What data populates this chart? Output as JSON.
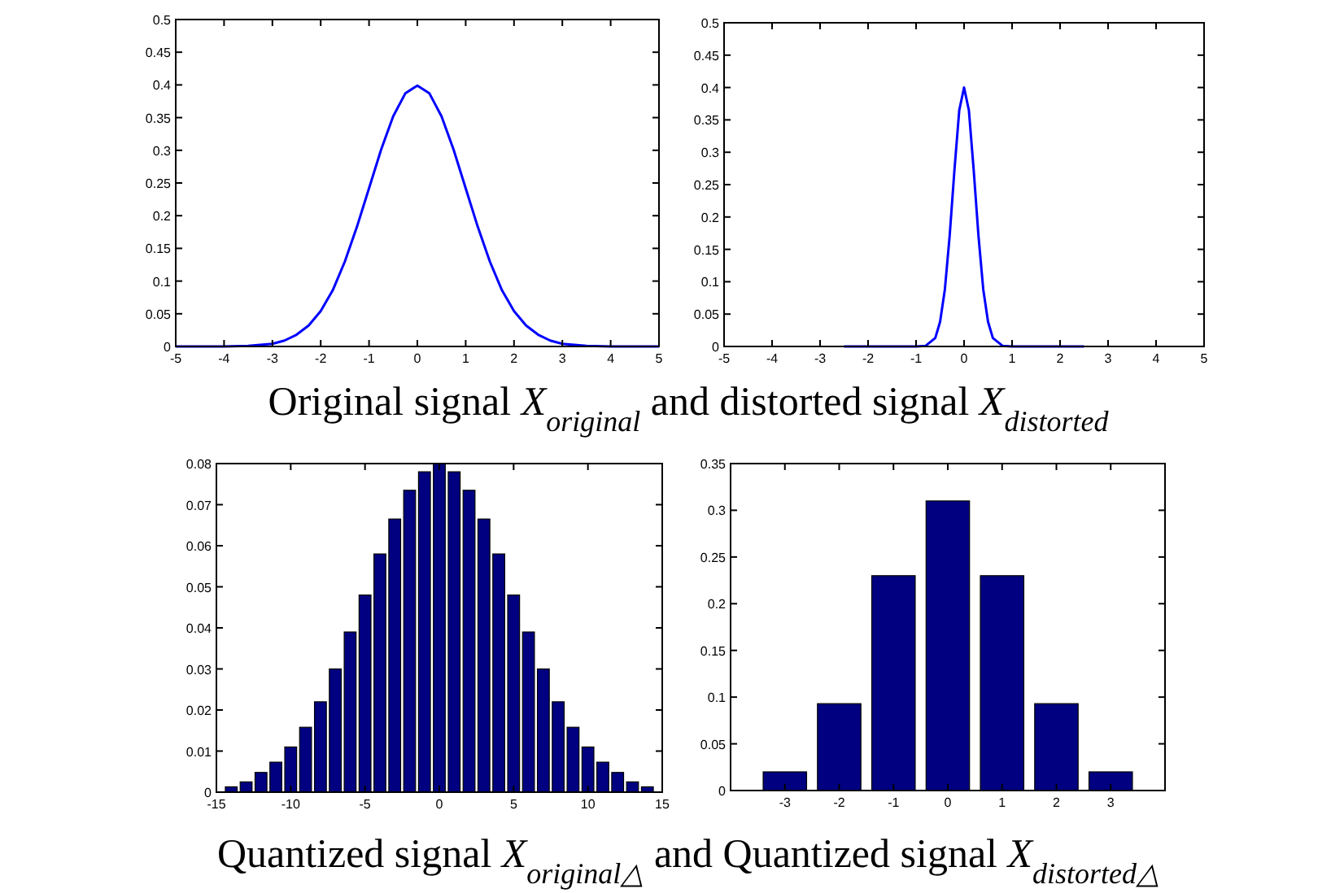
{
  "chart_data": [
    {
      "type": "line",
      "color": "#0000ff",
      "x": [
        -5,
        -4,
        -3.5,
        -3,
        -2.75,
        -2.5,
        -2.25,
        -2,
        -1.75,
        -1.5,
        -1.25,
        -1,
        -0.75,
        -0.5,
        -0.25,
        0,
        0.25,
        0.5,
        0.75,
        1,
        1.25,
        1.5,
        1.75,
        2,
        2.25,
        2.5,
        2.75,
        3,
        3.5,
        4,
        5
      ],
      "values": [
        0,
        0,
        0.001,
        0.004,
        0.009,
        0.018,
        0.032,
        0.054,
        0.086,
        0.13,
        0.183,
        0.242,
        0.301,
        0.352,
        0.387,
        0.399,
        0.387,
        0.352,
        0.301,
        0.242,
        0.183,
        0.13,
        0.086,
        0.054,
        0.032,
        0.018,
        0.009,
        0.004,
        0.001,
        0,
        0
      ],
      "xlim": [
        -5,
        5
      ],
      "xticks": [
        -5,
        -4,
        -3,
        -2,
        -1,
        0,
        1,
        2,
        3,
        4,
        5
      ],
      "ylim": [
        0,
        0.5
      ],
      "yticks": [
        0,
        0.05,
        0.1,
        0.15,
        0.2,
        0.25,
        0.3,
        0.35,
        0.4,
        0.45,
        0.5
      ],
      "annotations": [
        "Original signal X$_{original}$ and distorted signal X$_{distorted}$"
      ]
    },
    {
      "type": "line",
      "color": "#0000ff",
      "x": [
        -2.5,
        -1,
        -0.8,
        -0.6,
        -0.5,
        -0.4,
        -0.3,
        -0.2,
        -0.1,
        0,
        0.1,
        0.2,
        0.3,
        0.4,
        0.5,
        0.6,
        0.8,
        1,
        2.5
      ],
      "values": [
        0,
        0,
        0.001,
        0.013,
        0.038,
        0.088,
        0.171,
        0.273,
        0.365,
        0.4,
        0.365,
        0.273,
        0.171,
        0.088,
        0.038,
        0.013,
        0.001,
        0,
        0
      ],
      "xlim": [
        -5,
        5
      ],
      "xticks": [
        -5,
        -4,
        -3,
        -2,
        -1,
        0,
        1,
        2,
        3,
        4,
        5
      ],
      "ylim": [
        0,
        0.5
      ],
      "yticks": [
        0,
        0.05,
        0.1,
        0.15,
        0.2,
        0.25,
        0.3,
        0.35,
        0.4,
        0.45,
        0.5
      ]
    },
    {
      "type": "bar",
      "color": "#000080",
      "x": [
        -14,
        -13,
        -12,
        -11,
        -10,
        -9,
        -8,
        -7,
        -6,
        -5,
        -4,
        -3,
        -2,
        -1,
        0,
        1,
        2,
        3,
        4,
        5,
        6,
        7,
        8,
        9,
        10,
        11,
        12,
        13,
        14
      ],
      "values": [
        0.0013,
        0.0025,
        0.0048,
        0.0073,
        0.011,
        0.0158,
        0.022,
        0.03,
        0.039,
        0.048,
        0.058,
        0.0665,
        0.0735,
        0.078,
        0.08,
        0.078,
        0.0735,
        0.0665,
        0.058,
        0.048,
        0.039,
        0.03,
        0.022,
        0.0158,
        0.011,
        0.0073,
        0.0048,
        0.0025,
        0.0013
      ],
      "xlim": [
        -15,
        15
      ],
      "xticks": [
        -15,
        -10,
        -5,
        0,
        5,
        10,
        15
      ],
      "ylim": [
        0,
        0.08
      ],
      "yticks": [
        0,
        0.01,
        0.02,
        0.03,
        0.04,
        0.05,
        0.06,
        0.07,
        0.08
      ],
      "annotations": [
        "Quantized signal X$_{original△}$ and Quantized signal X$_{distorted△}$"
      ]
    },
    {
      "type": "bar",
      "color": "#000080",
      "x": [
        -3,
        -2,
        -1,
        0,
        1,
        2,
        3
      ],
      "values": [
        0.02,
        0.093,
        0.23,
        0.31,
        0.23,
        0.093,
        0.02
      ],
      "xlim": [
        -4,
        4
      ],
      "xticks": [
        -3,
        -2,
        -1,
        0,
        1,
        2,
        3
      ],
      "ylim": [
        0,
        0.35
      ],
      "yticks": [
        0,
        0.05,
        0.1,
        0.15,
        0.2,
        0.25,
        0.3,
        0.35
      ]
    }
  ]
}
